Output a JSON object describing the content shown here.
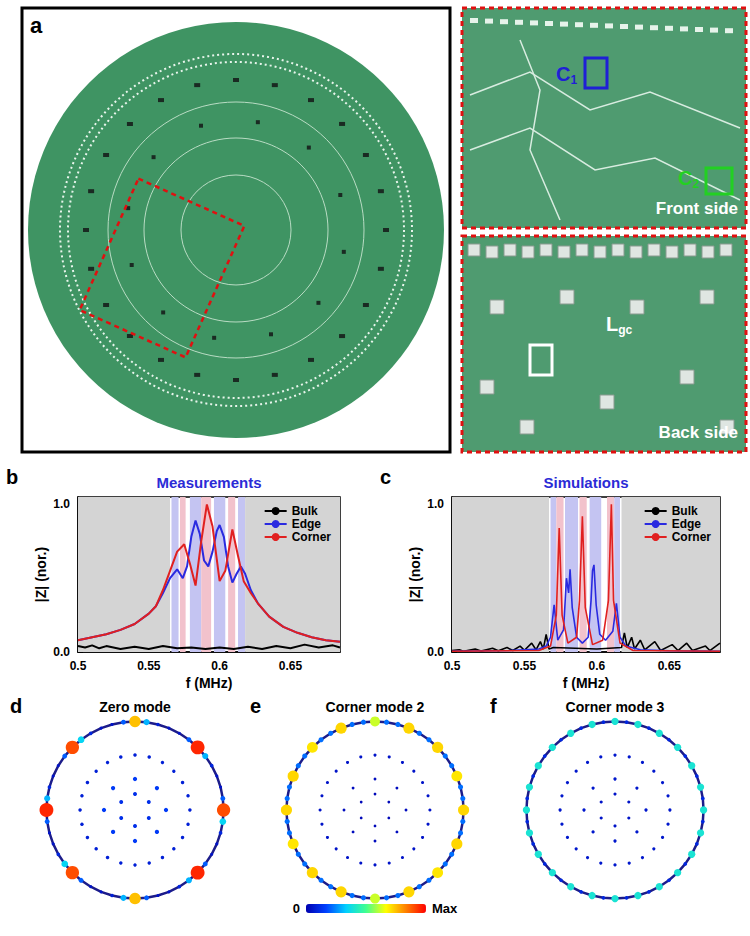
{
  "photo": {
    "label": "a",
    "insets": [
      {
        "title": "Front side",
        "markers": [
          {
            "text": "C",
            "subscript": "1",
            "color": "#1f1fd6"
          },
          {
            "text": "C",
            "subscript": "2",
            "color": "#22d022"
          }
        ]
      },
      {
        "title": "Back side",
        "markers": [
          {
            "text": "L",
            "subscript": "gc",
            "color": "#ffffff"
          }
        ]
      }
    ]
  },
  "chart_data": [
    {
      "label": "b",
      "type": "line",
      "title": "Measurements",
      "x_label": "f (MHz)",
      "y_label": "|Z| (nor.)",
      "xlim": [
        0.5,
        0.685
      ],
      "xticks": [
        0.5,
        0.55,
        0.6,
        0.65
      ],
      "ylim": [
        0,
        1.05
      ],
      "yticks": [
        {
          "value": 0,
          "label": "0.0"
        },
        {
          "value": 1,
          "label": "1.0"
        }
      ],
      "grid": false,
      "legend": "upper right",
      "bands": [
        {
          "from": 0.5,
          "to": 0.565,
          "color": "#d4d4d4"
        },
        {
          "from": 0.566,
          "to": 0.571,
          "color": "#c4c4f2"
        },
        {
          "from": 0.572,
          "to": 0.576,
          "color": "#f2c2cc"
        },
        {
          "from": 0.579,
          "to": 0.587,
          "color": "#c4c4f2"
        },
        {
          "from": 0.587,
          "to": 0.594,
          "color": "#f2c2cc"
        },
        {
          "from": 0.596,
          "to": 0.604,
          "color": "#c4c4f2"
        },
        {
          "from": 0.606,
          "to": 0.611,
          "color": "#f2c2cc"
        },
        {
          "from": 0.613,
          "to": 0.618,
          "color": "#c4c4f2"
        },
        {
          "from": 0.618,
          "to": 0.685,
          "color": "#d4d4d4"
        }
      ],
      "series": [
        {
          "name": "Bulk",
          "color": "#000000",
          "x": [
            0.5,
            0.505,
            0.51,
            0.515,
            0.52,
            0.53,
            0.54,
            0.55,
            0.56,
            0.57,
            0.58,
            0.59,
            0.6,
            0.61,
            0.62,
            0.63,
            0.64,
            0.65,
            0.66,
            0.67,
            0.68,
            0.685
          ],
          "values": [
            0.04,
            0.03,
            0.045,
            0.025,
            0.04,
            0.02,
            0.035,
            0.02,
            0.04,
            0.025,
            0.03,
            0.02,
            0.03,
            0.02,
            0.035,
            0.02,
            0.04,
            0.025,
            0.05,
            0.03,
            0.045,
            0.03
          ]
        },
        {
          "name": "Edge",
          "color": "#2a2ae0",
          "x": [
            0.5,
            0.51,
            0.52,
            0.53,
            0.54,
            0.55,
            0.555,
            0.56,
            0.565,
            0.57,
            0.574,
            0.577,
            0.58,
            0.583,
            0.586,
            0.589,
            0.592,
            0.595,
            0.598,
            0.6,
            0.603,
            0.606,
            0.609,
            0.612,
            0.615,
            0.618,
            0.622,
            0.627,
            0.635,
            0.645,
            0.655,
            0.665,
            0.675,
            0.685
          ],
          "values": [
            0.08,
            0.1,
            0.12,
            0.15,
            0.19,
            0.26,
            0.31,
            0.4,
            0.5,
            0.56,
            0.5,
            0.58,
            0.78,
            0.89,
            0.8,
            0.62,
            0.58,
            0.68,
            0.82,
            0.86,
            0.78,
            0.58,
            0.47,
            0.53,
            0.58,
            0.53,
            0.42,
            0.33,
            0.24,
            0.17,
            0.13,
            0.1,
            0.08,
            0.07
          ]
        },
        {
          "name": "Corner",
          "color": "#e02020",
          "x": [
            0.5,
            0.51,
            0.52,
            0.53,
            0.54,
            0.55,
            0.555,
            0.56,
            0.565,
            0.57,
            0.575,
            0.579,
            0.583,
            0.587,
            0.591,
            0.595,
            0.6,
            0.604,
            0.609,
            0.613,
            0.617,
            0.622,
            0.627,
            0.635,
            0.645,
            0.655,
            0.665,
            0.675,
            0.685
          ],
          "values": [
            0.08,
            0.1,
            0.12,
            0.15,
            0.19,
            0.26,
            0.31,
            0.42,
            0.55,
            0.68,
            0.73,
            0.6,
            0.45,
            0.75,
            1.0,
            0.85,
            0.48,
            0.55,
            0.83,
            0.65,
            0.48,
            0.4,
            0.33,
            0.24,
            0.17,
            0.13,
            0.1,
            0.08,
            0.07
          ]
        }
      ]
    },
    {
      "label": "c",
      "type": "line",
      "title": "Simulations",
      "x_label": "f (MHz)",
      "y_label": "|Z| (nor.)",
      "xlim": [
        0.5,
        0.685
      ],
      "xticks": [
        0.5,
        0.55,
        0.6,
        0.65
      ],
      "ylim": [
        0,
        1.05
      ],
      "yticks": [
        {
          "value": 0,
          "label": "0.0"
        },
        {
          "value": 1,
          "label": "1.0"
        }
      ],
      "grid": false,
      "legend": "upper right",
      "bands": [
        {
          "from": 0.5,
          "to": 0.567,
          "color": "#d4d4d4"
        },
        {
          "from": 0.568,
          "to": 0.572,
          "color": "#c4c4f2"
        },
        {
          "from": 0.572,
          "to": 0.577,
          "color": "#f2c2cc"
        },
        {
          "from": 0.578,
          "to": 0.587,
          "color": "#c4c4f2"
        },
        {
          "from": 0.588,
          "to": 0.593,
          "color": "#f2c2cc"
        },
        {
          "from": 0.595,
          "to": 0.603,
          "color": "#c4c4f2"
        },
        {
          "from": 0.607,
          "to": 0.612,
          "color": "#f2c2cc"
        },
        {
          "from": 0.612,
          "to": 0.616,
          "color": "#c4c4f2"
        },
        {
          "from": 0.617,
          "to": 0.685,
          "color": "#d4d4d4"
        }
      ],
      "series": [
        {
          "name": "Bulk",
          "color": "#000000",
          "x": [
            0.5,
            0.505,
            0.508,
            0.516,
            0.52,
            0.528,
            0.532,
            0.538,
            0.542,
            0.547,
            0.55,
            0.555,
            0.558,
            0.561,
            0.563,
            0.565,
            0.567,
            0.57,
            0.6,
            0.617,
            0.619,
            0.621,
            0.624,
            0.626,
            0.63,
            0.633,
            0.64,
            0.644,
            0.652,
            0.656,
            0.662,
            0.666,
            0.675,
            0.678,
            0.685
          ],
          "values": [
            0.01,
            0.015,
            0.005,
            0.02,
            0.006,
            0.025,
            0.008,
            0.03,
            0.01,
            0.04,
            0.012,
            0.06,
            0.015,
            0.07,
            0.02,
            0.12,
            0.02,
            0.03,
            0.02,
            0.03,
            0.13,
            0.03,
            0.1,
            0.02,
            0.08,
            0.015,
            0.07,
            0.01,
            0.05,
            0.01,
            0.06,
            0.01,
            0.04,
            0.01,
            0.06
          ]
        },
        {
          "name": "Edge",
          "color": "#2a2ae0",
          "x": [
            0.5,
            0.54,
            0.56,
            0.565,
            0.568,
            0.5705,
            0.573,
            0.577,
            0.579,
            0.5805,
            0.5815,
            0.583,
            0.586,
            0.59,
            0.594,
            0.596,
            0.597,
            0.598,
            0.5995,
            0.602,
            0.606,
            0.611,
            0.6135,
            0.616,
            0.62,
            0.63,
            0.65,
            0.685
          ],
          "values": [
            0.005,
            0.01,
            0.02,
            0.04,
            0.1,
            0.32,
            0.08,
            0.15,
            0.5,
            0.4,
            0.56,
            0.3,
            0.1,
            0.06,
            0.1,
            0.35,
            0.55,
            0.59,
            0.32,
            0.12,
            0.08,
            0.14,
            0.33,
            0.1,
            0.04,
            0.015,
            0.008,
            0.005
          ]
        },
        {
          "name": "Corner",
          "color": "#e02020",
          "x": [
            0.5,
            0.56,
            0.568,
            0.572,
            0.574,
            0.576,
            0.58,
            0.586,
            0.588,
            0.59,
            0.592,
            0.597,
            0.604,
            0.608,
            0.61,
            0.6115,
            0.616,
            0.625,
            0.685
          ],
          "values": [
            0.005,
            0.01,
            0.04,
            0.25,
            0.84,
            0.25,
            0.06,
            0.1,
            0.35,
            0.92,
            0.3,
            0.05,
            0.08,
            0.35,
            1.0,
            0.35,
            0.06,
            0.01,
            0.005
          ]
        }
      ]
    },
    {
      "label": "d",
      "type": "scatter",
      "title": "Zero mode",
      "rlim": [
        0,
        1.05
      ],
      "rings": [
        {
          "radius": 1.0,
          "amplitudes": [
            0.75,
            0.3,
            0.08,
            0.05,
            0.05,
            0.2,
            0.95,
            0.3,
            0.1,
            0.05,
            0.05,
            0.2,
            0.9,
            0.35,
            0.1,
            0.05,
            0.05,
            0.2,
            0.95,
            0.3,
            0.1,
            0.05,
            0.05,
            0.2,
            0.75,
            0.3,
            0.08,
            0.05,
            0.05,
            0.2,
            0.9,
            0.35,
            0.1,
            0.05,
            0.05,
            0.2,
            0.95,
            0.3,
            0.1,
            0.05,
            0.05,
            0.2,
            0.9,
            0.35,
            0.1,
            0.05,
            0.05,
            0.2
          ]
        },
        {
          "radius": 0.62,
          "amplitudes": [
            0.08,
            0.08,
            0.08,
            0.08,
            0.08,
            0.08,
            0.08,
            0.08,
            0.08,
            0.08,
            0.08,
            0.08,
            0.08,
            0.08,
            0.08,
            0.08,
            0.08,
            0.08,
            0.08,
            0.08,
            0.08,
            0.08,
            0.08,
            0.08
          ]
        },
        {
          "radius": 0.35,
          "amplitudes": [
            0.15,
            0.15,
            0.15,
            0.15,
            0.15,
            0.15,
            0.15,
            0.15
          ]
        },
        {
          "radius": 0.18,
          "amplitudes": [
            0.12,
            0.12,
            0.12,
            0.12,
            0.12,
            0.12
          ]
        }
      ]
    },
    {
      "label": "e",
      "type": "scatter",
      "title": "Corner mode 2",
      "rlim": [
        0,
        1.05
      ],
      "rings": [
        {
          "radius": 1.0,
          "amplitudes": [
            0.62,
            0.22,
            0.22,
            0.72,
            0.22,
            0.22,
            0.72,
            0.22,
            0.22,
            0.7,
            0.22,
            0.22,
            0.72,
            0.22,
            0.22,
            0.72,
            0.22,
            0.22,
            0.7,
            0.22,
            0.22,
            0.72,
            0.22,
            0.22,
            0.62,
            0.22,
            0.22,
            0.72,
            0.22,
            0.22,
            0.72,
            0.22,
            0.22,
            0.7,
            0.22,
            0.22,
            0.72,
            0.22,
            0.22,
            0.72,
            0.22,
            0.22,
            0.7,
            0.22,
            0.22,
            0.72,
            0.22,
            0.22
          ]
        },
        {
          "radius": 0.62,
          "amplitudes": [
            0.05,
            0.05,
            0.05,
            0.05,
            0.05,
            0.05,
            0.05,
            0.05,
            0.05,
            0.05,
            0.05,
            0.05,
            0.05,
            0.05,
            0.05,
            0.05,
            0.05,
            0.05,
            0.05,
            0.05,
            0.05,
            0.05,
            0.05,
            0.05
          ]
        },
        {
          "radius": 0.35,
          "amplitudes": [
            0.03,
            0.03,
            0.03,
            0.03,
            0.03,
            0.03,
            0.03,
            0.03
          ]
        },
        {
          "radius": 0.18,
          "amplitudes": [
            0.02,
            0.02,
            0.02,
            0.02,
            0.02,
            0.02
          ]
        }
      ]
    },
    {
      "label": "f",
      "type": "scatter",
      "title": "Corner mode 3",
      "rlim": [
        0,
        1.05
      ],
      "rings": [
        {
          "radius": 1.0,
          "amplitudes": [
            0.4,
            0.1,
            0.4,
            0.1,
            0.4,
            0.1,
            0.4,
            0.1,
            0.4,
            0.1,
            0.4,
            0.1,
            0.4,
            0.1,
            0.4,
            0.1,
            0.4,
            0.1,
            0.4,
            0.1,
            0.4,
            0.1,
            0.4,
            0.1,
            0.4,
            0.1,
            0.4,
            0.1,
            0.4,
            0.1,
            0.4,
            0.1,
            0.4,
            0.1,
            0.4,
            0.1,
            0.4,
            0.1,
            0.4,
            0.1,
            0.4,
            0.1,
            0.4,
            0.1,
            0.4,
            0.1,
            0.4,
            0.1
          ]
        },
        {
          "radius": 0.62,
          "amplitudes": [
            0.06,
            0.06,
            0.06,
            0.06,
            0.06,
            0.06,
            0.06,
            0.06,
            0.06,
            0.06,
            0.06,
            0.06,
            0.06,
            0.06,
            0.06,
            0.06,
            0.06,
            0.06,
            0.06,
            0.06,
            0.06,
            0.06,
            0.06,
            0.06
          ]
        },
        {
          "radius": 0.35,
          "amplitudes": [
            0.06,
            0.06,
            0.06,
            0.06,
            0.06,
            0.06,
            0.06,
            0.06
          ]
        },
        {
          "radius": 0.18,
          "amplitudes": [
            0.05,
            0.05,
            0.05,
            0.05,
            0.05,
            0.05
          ]
        }
      ]
    }
  ],
  "colorbar": {
    "range": [
      0,
      1
    ],
    "ticks": [
      0,
      {
        "value": 1,
        "label": "Max"
      }
    ]
  }
}
